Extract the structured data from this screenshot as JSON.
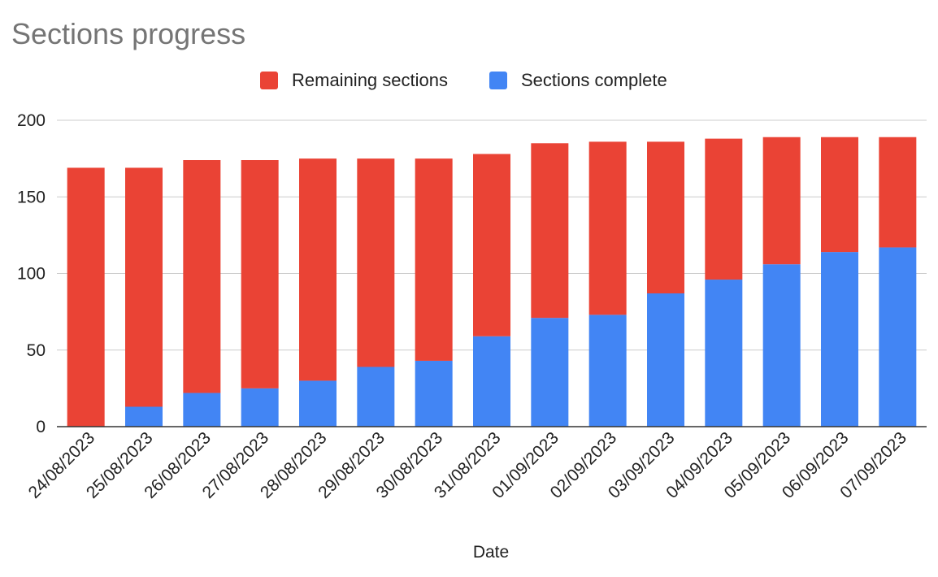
{
  "chart_data": {
    "type": "bar",
    "stacked": true,
    "title": "Sections progress",
    "xlabel": "Date",
    "ylabel": "",
    "ylim": [
      0,
      200
    ],
    "yticks": [
      0,
      50,
      100,
      150,
      200
    ],
    "grid": true,
    "legend_position": "top",
    "categories": [
      "24/08/2023",
      "25/08/2023",
      "26/08/2023",
      "27/08/2023",
      "28/08/2023",
      "29/08/2023",
      "30/08/2023",
      "31/08/2023",
      "01/09/2023",
      "02/09/2023",
      "03/09/2023",
      "04/09/2023",
      "05/09/2023",
      "06/09/2023",
      "07/09/2023"
    ],
    "series": [
      {
        "name": "Sections complete",
        "color": "#4285f4",
        "values": [
          0,
          13,
          22,
          25,
          30,
          39,
          43,
          59,
          71,
          73,
          87,
          96,
          106,
          114,
          117
        ]
      },
      {
        "name": "Remaining sections",
        "color": "#ea4335",
        "values": [
          169,
          156,
          152,
          149,
          145,
          136,
          132,
          119,
          114,
          113,
          99,
          92,
          83,
          75,
          72
        ]
      }
    ],
    "legend_order": [
      "Remaining sections",
      "Sections complete"
    ]
  }
}
